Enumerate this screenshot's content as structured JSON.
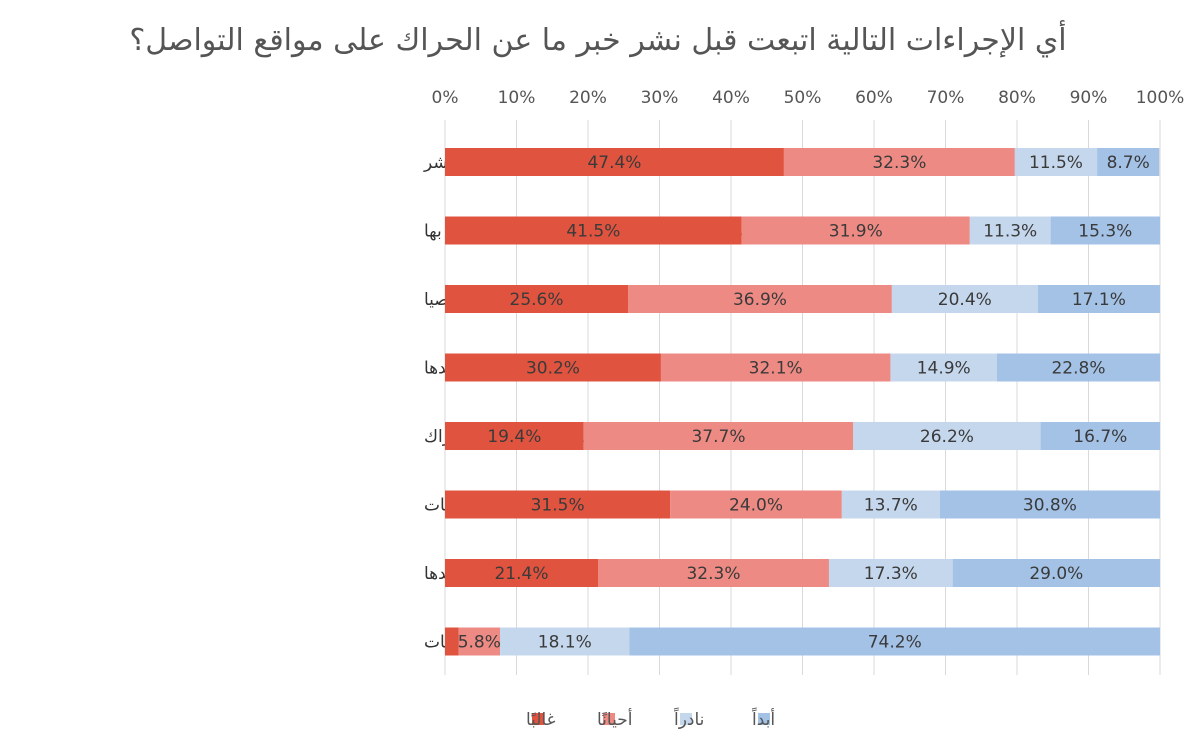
{
  "chart_data": {
    "type": "bar",
    "orientation": "horizontal",
    "stacked": true,
    "title": "أي الإجراءات التالية اتبعت قبل نشر خبر ما عن الحراك على مواقع التواصل؟",
    "xlabel": "",
    "ylabel": "",
    "xlim": [
      0,
      100
    ],
    "x_tick_labels": [
      "0%",
      "10%",
      "20%",
      "30%",
      "40%",
      "50%",
      "60%",
      "70%",
      "80%",
      "90%",
      "100%"
    ],
    "grid": true,
    "legend_position": "bottom",
    "categories": [
      "تأكدت من المصدر الأساس للخبر قبل النشر",
      "نشرت فقط أخباراً من مؤسسات وأشخاص أثق بها",
      "نشرت فقط أخباراً من مصادر وأشخاص أعرفها شخصيا",
      "نشرت فقط أخباراً أؤيدها",
      "نشرت أكثرية الاخبار التي وصلتني عن الحراك",
      "نشرت أي أخبار تؤيد الاحتجاجات",
      "نشرت فقط أخباراً من مؤسسات وأشخاص أؤيدها",
      "نشرت أي أخبار ضد الاحتجاجات"
    ],
    "series": [
      {
        "name": "غالبًا",
        "color": "#e0533f",
        "values": [
          47.4,
          41.5,
          25.6,
          30.2,
          19.4,
          31.5,
          21.4,
          1.9
        ],
        "labels": [
          "47.4%",
          "41.5%",
          "25.6%",
          "30.2%",
          "19.4%",
          "31.5%",
          "21.4%",
          ""
        ]
      },
      {
        "name": "أحيانًا",
        "color": "#ee8a84",
        "values": [
          32.3,
          31.9,
          36.9,
          32.1,
          37.7,
          24.0,
          32.3,
          5.8
        ],
        "labels": [
          "32.3%",
          "31.9%",
          "36.9%",
          "32.1%",
          "37.7%",
          "24.0%",
          "32.3%",
          "5.8%"
        ]
      },
      {
        "name": "نادراً",
        "color": "#c5d7ed",
        "values": [
          11.5,
          11.3,
          20.4,
          14.9,
          26.2,
          13.7,
          17.3,
          18.1
        ],
        "labels": [
          "11.5%",
          "11.3%",
          "20.4%",
          "14.9%",
          "26.2%",
          "13.7%",
          "17.3%",
          "18.1%"
        ]
      },
      {
        "name": "أبداً",
        "color": "#a3c2e6",
        "values": [
          8.7,
          15.3,
          17.1,
          22.8,
          16.7,
          30.8,
          29.0,
          74.2
        ],
        "labels": [
          "8.7%",
          "15.3%",
          "17.1%",
          "22.8%",
          "16.7%",
          "30.8%",
          "29.0%",
          "74.2%"
        ]
      }
    ]
  }
}
